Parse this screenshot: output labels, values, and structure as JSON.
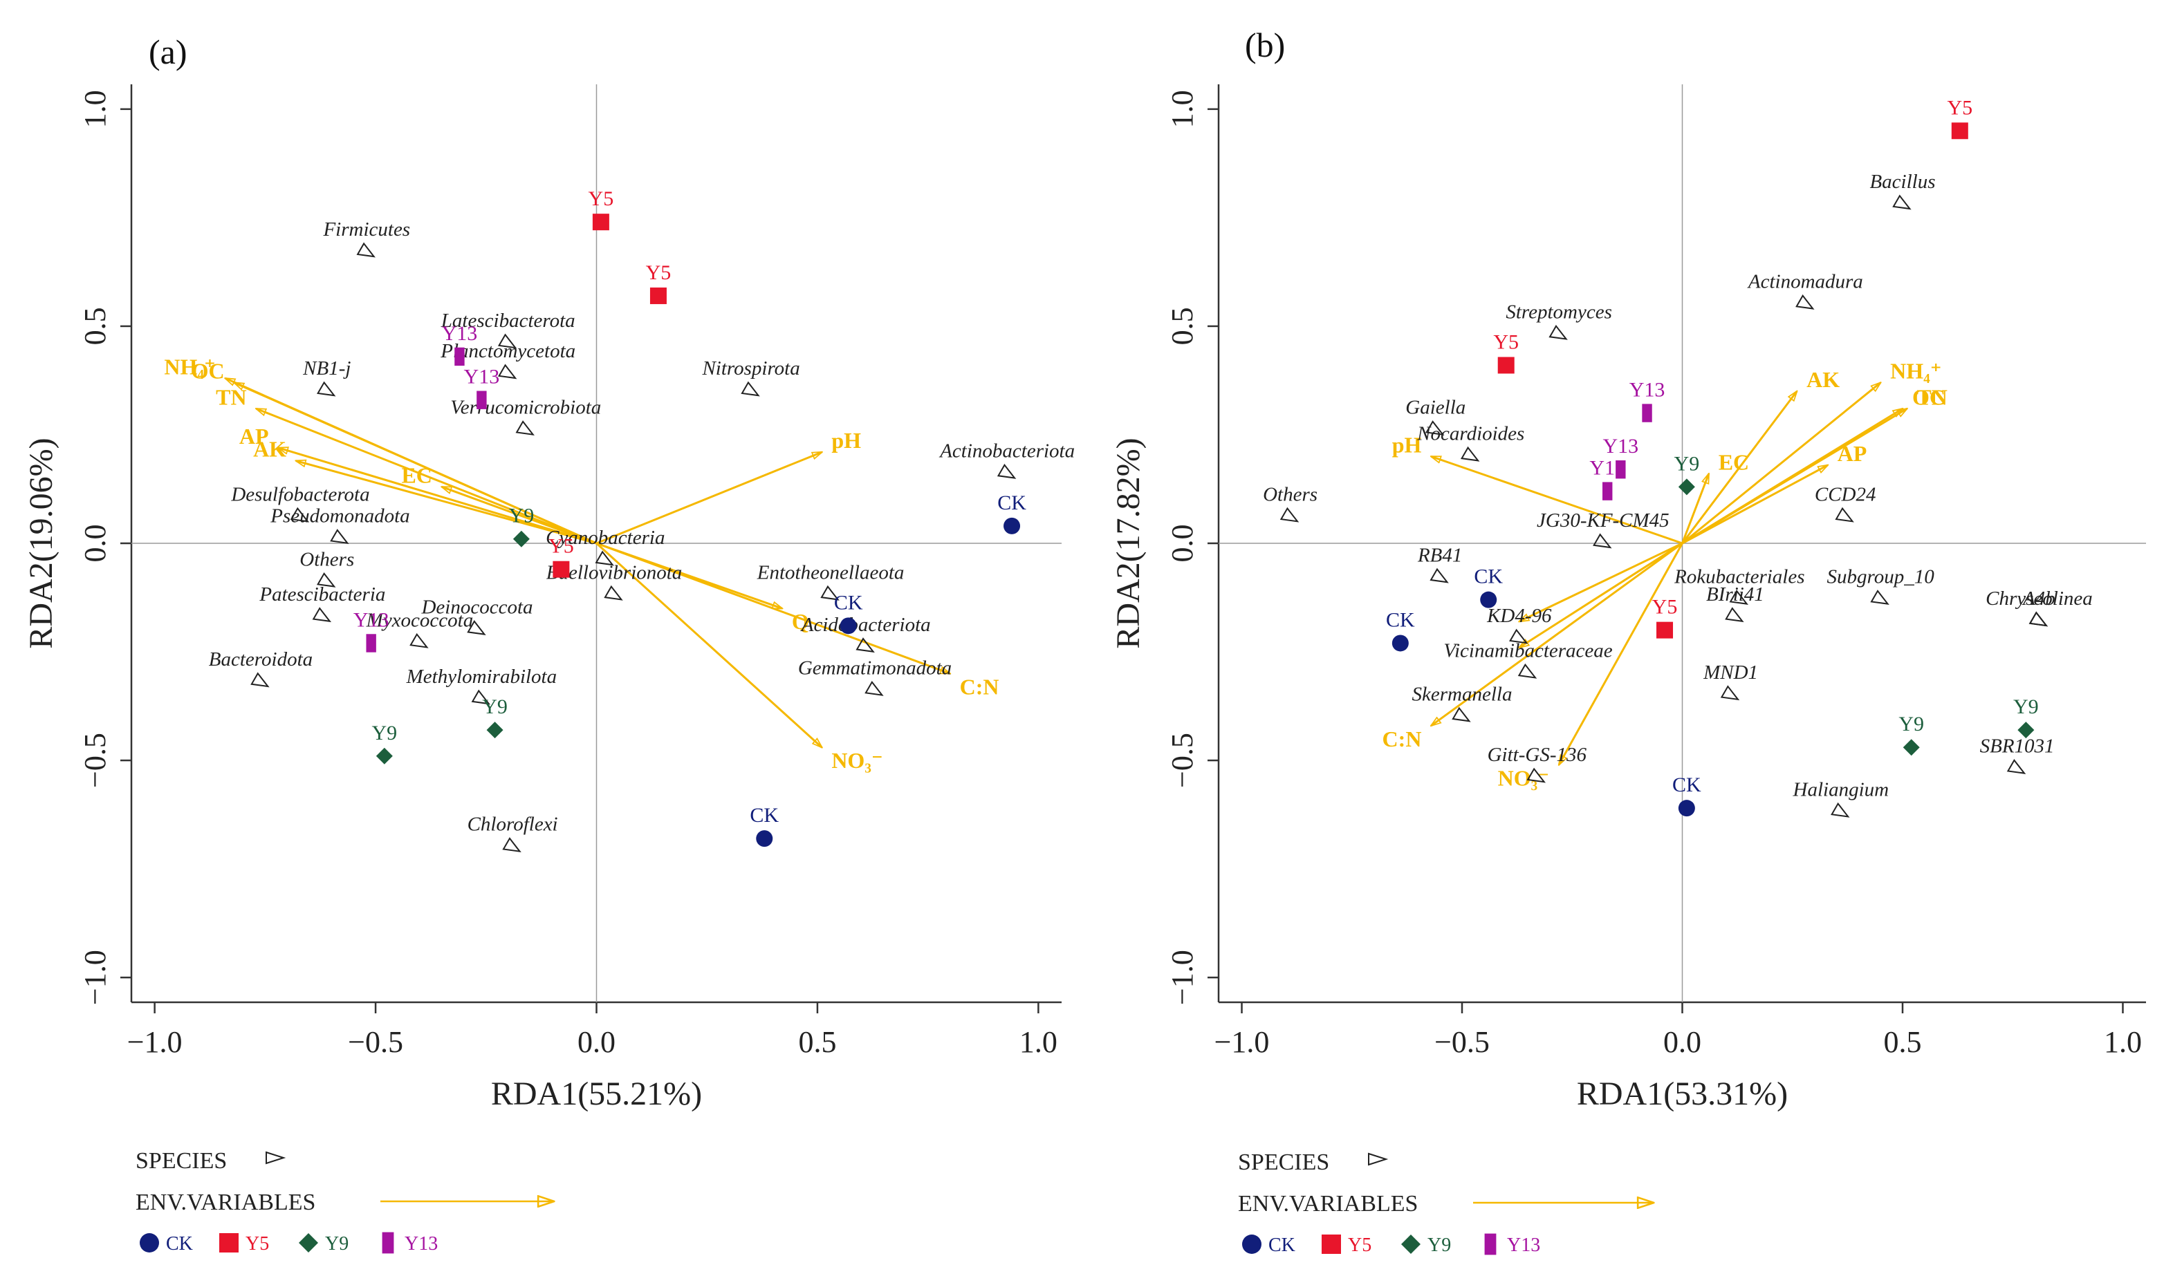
{
  "colors": {
    "env": "#F5B800",
    "CK": "#111E7A",
    "Y5": "#E8152B",
    "Y9": "#1C5E3C",
    "Y13": "#A512A0",
    "species": "#222222",
    "axis": "#333333"
  },
  "legend": {
    "species_label": "SPECIES",
    "env_label": "ENV.VARIABLES",
    "sites": [
      "CK",
      "Y5",
      "Y9",
      "Y13"
    ]
  },
  "chart_data": [
    {
      "type": "scatter",
      "panel": "(a)",
      "xlabel": "RDA1(55.21%)",
      "ylabel": "RDA2(19.06%)",
      "xlim": [
        -1.0,
        1.0
      ],
      "ylim": [
        -1.0,
        1.0
      ],
      "xticks": [
        "-1.0",
        "-0.5",
        "0.0",
        "0.5",
        "1.0"
      ],
      "yticks": [
        "-1.0",
        "-0.5",
        "0.0",
        "0.5",
        "1.0"
      ],
      "species": [
        {
          "name": "Firmicutes",
          "x": -0.52,
          "y": 0.67
        },
        {
          "name": "Latescibacterota",
          "x": -0.2,
          "y": 0.46
        },
        {
          "name": "NB1-j",
          "x": -0.61,
          "y": 0.35
        },
        {
          "name": "Planctomycetota",
          "x": -0.2,
          "y": 0.39
        },
        {
          "name": "Nitrospirota",
          "x": 0.35,
          "y": 0.35
        },
        {
          "name": "Verrucomicrobiota",
          "x": -0.16,
          "y": 0.26
        },
        {
          "name": "Actinobacteriota",
          "x": 0.93,
          "y": 0.16
        },
        {
          "name": "Pseudomonadota",
          "x": -0.58,
          "y": 0.01
        },
        {
          "name": "Desulfobacterota",
          "x": -0.67,
          "y": 0.06
        },
        {
          "name": "Others",
          "x": -0.61,
          "y": -0.09
        },
        {
          "name": "Patescibacteria",
          "x": -0.62,
          "y": -0.17
        },
        {
          "name": "Cyanobacteria",
          "x": 0.02,
          "y": -0.04
        },
        {
          "name": "Bdellovibrionota",
          "x": 0.04,
          "y": -0.12
        },
        {
          "name": "Entotheonellaeota",
          "x": 0.53,
          "y": -0.12
        },
        {
          "name": "Acidobacteriota",
          "x": 0.61,
          "y": -0.24
        },
        {
          "name": "Myxococcota",
          "x": -0.4,
          "y": -0.23
        },
        {
          "name": "Deinococcota",
          "x": -0.27,
          "y": -0.2
        },
        {
          "name": "Bacteroidota",
          "x": -0.76,
          "y": -0.32
        },
        {
          "name": "Methylomirabilota",
          "x": -0.26,
          "y": -0.36
        },
        {
          "name": "Gemmatimonadota",
          "x": 0.63,
          "y": -0.34
        },
        {
          "name": "Chloroflexi",
          "x": -0.19,
          "y": -0.7
        }
      ],
      "env": [
        {
          "name": "NH₄⁺",
          "x": -0.84,
          "y": 0.38
        },
        {
          "name": "OC",
          "x": -0.82,
          "y": 0.37
        },
        {
          "name": "TN",
          "x": -0.77,
          "y": 0.31
        },
        {
          "name": "AP",
          "x": -0.72,
          "y": 0.22
        },
        {
          "name": "AK",
          "x": -0.68,
          "y": 0.19
        },
        {
          "name": "EC",
          "x": -0.35,
          "y": 0.13
        },
        {
          "name": "pH",
          "x": 0.51,
          "y": 0.21
        },
        {
          "name": "Q",
          "x": 0.42,
          "y": -0.15
        },
        {
          "name": "C:N",
          "x": 0.8,
          "y": -0.3
        },
        {
          "name": "NO₃⁻",
          "x": 0.51,
          "y": -0.47
        }
      ],
      "sites": [
        {
          "group": "Y5",
          "x": 0.01,
          "y": 0.74
        },
        {
          "group": "Y5",
          "x": 0.14,
          "y": 0.57
        },
        {
          "group": "Y5",
          "x": -0.08,
          "y": -0.06
        },
        {
          "group": "Y13",
          "x": -0.31,
          "y": 0.43
        },
        {
          "group": "Y13",
          "x": -0.26,
          "y": 0.33
        },
        {
          "group": "Y13",
          "x": -0.51,
          "y": -0.23
        },
        {
          "group": "Y9",
          "x": -0.17,
          "y": 0.01
        },
        {
          "group": "Y9",
          "x": -0.48,
          "y": -0.49
        },
        {
          "group": "Y9",
          "x": -0.23,
          "y": -0.43
        },
        {
          "group": "CK",
          "x": 0.94,
          "y": 0.04
        },
        {
          "group": "CK",
          "x": 0.57,
          "y": -0.19
        },
        {
          "group": "CK",
          "x": 0.38,
          "y": -0.68
        }
      ]
    },
    {
      "type": "scatter",
      "panel": "(b)",
      "xlabel": "RDA1(53.31%)",
      "ylabel": "RDA2(17.82%)",
      "xlim": [
        -1.0,
        1.0
      ],
      "ylim": [
        -1.0,
        1.0
      ],
      "xticks": [
        "-1.0",
        "-0.5",
        "0.0",
        "0.5",
        "1.0"
      ],
      "yticks": [
        "-1.0",
        "-0.5",
        "0.0",
        "0.5",
        "1.0"
      ],
      "species": [
        {
          "name": "Bacillus",
          "x": 0.5,
          "y": 0.78
        },
        {
          "name": "Actinomadura",
          "x": 0.28,
          "y": 0.55
        },
        {
          "name": "Streptomyces",
          "x": -0.28,
          "y": 0.48
        },
        {
          "name": "Gaiella",
          "x": -0.56,
          "y": 0.26
        },
        {
          "name": "Nocardioides",
          "x": -0.48,
          "y": 0.2
        },
        {
          "name": "Others",
          "x": -0.89,
          "y": 0.06
        },
        {
          "name": "JG30-KF-CM45",
          "x": -0.18,
          "y": 0.0
        },
        {
          "name": "CCD24",
          "x": 0.37,
          "y": 0.06
        },
        {
          "name": "RB41",
          "x": -0.55,
          "y": -0.08
        },
        {
          "name": "Rokubacteriales",
          "x": 0.13,
          "y": -0.13
        },
        {
          "name": "Subgroup_10",
          "x": 0.45,
          "y": -0.13
        },
        {
          "name": "KD4-96",
          "x": -0.37,
          "y": -0.22
        },
        {
          "name": "BIrii41",
          "x": 0.12,
          "y": -0.17
        },
        {
          "name": "Chryseolinea",
          "x": 0.81,
          "y": -0.18
        },
        {
          "name": "A4b",
          "x": 0.81,
          "y": -0.18
        },
        {
          "name": "Vicinamibacteraceae",
          "x": -0.35,
          "y": -0.3
        },
        {
          "name": "MND1",
          "x": 0.11,
          "y": -0.35
        },
        {
          "name": "Skermanella",
          "x": -0.5,
          "y": -0.4
        },
        {
          "name": "Gitt-GS-136",
          "x": -0.33,
          "y": -0.54
        },
        {
          "name": "SBR1031",
          "x": 0.76,
          "y": -0.52
        },
        {
          "name": "Haliangium",
          "x": 0.36,
          "y": -0.62
        }
      ],
      "env": [
        {
          "name": "AK",
          "x": 0.26,
          "y": 0.35
        },
        {
          "name": "NH₄⁺",
          "x": 0.45,
          "y": 0.37
        },
        {
          "name": "TN",
          "x": 0.51,
          "y": 0.31
        },
        {
          "name": "OC",
          "x": 0.5,
          "y": 0.31
        },
        {
          "name": "AP",
          "x": 0.33,
          "y": 0.18
        },
        {
          "name": "EC",
          "x": 0.06,
          "y": 0.16
        },
        {
          "name": "pH",
          "x": -0.57,
          "y": 0.2
        },
        {
          "name": "C:N",
          "x": -0.57,
          "y": -0.42
        },
        {
          "name": "NO₃⁻",
          "x": -0.28,
          "y": -0.51
        },
        {
          "name": "",
          "x": -0.37,
          "y": -0.18
        },
        {
          "name": "",
          "x": -0.37,
          "y": -0.24
        }
      ],
      "sites": [
        {
          "group": "Y5",
          "x": 0.63,
          "y": 0.95
        },
        {
          "group": "Y5",
          "x": -0.4,
          "y": 0.41
        },
        {
          "group": "Y5",
          "x": -0.04,
          "y": -0.2
        },
        {
          "group": "Y13",
          "x": -0.08,
          "y": 0.3
        },
        {
          "group": "Y13",
          "x": -0.14,
          "y": 0.17
        },
        {
          "group": "Y13",
          "x": -0.17,
          "y": 0.12
        },
        {
          "group": "Y9",
          "x": 0.01,
          "y": 0.13
        },
        {
          "group": "Y9",
          "x": 0.52,
          "y": -0.47
        },
        {
          "group": "Y9",
          "x": 0.78,
          "y": -0.43
        },
        {
          "group": "CK",
          "x": -0.44,
          "y": -0.13
        },
        {
          "group": "CK",
          "x": -0.64,
          "y": -0.23
        },
        {
          "group": "CK",
          "x": 0.01,
          "y": -0.61
        }
      ]
    }
  ]
}
